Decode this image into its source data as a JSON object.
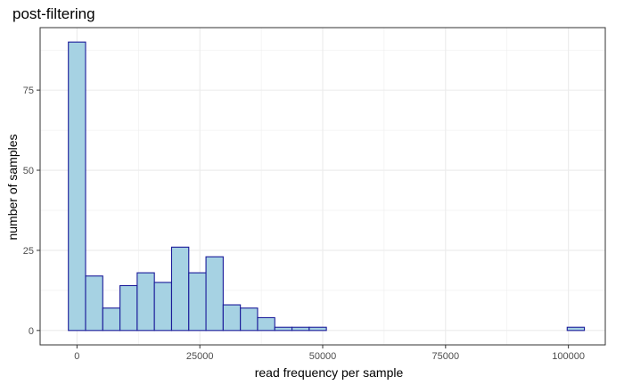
{
  "chart_data": {
    "type": "bar",
    "title": "post-filtering",
    "xlabel": "read frequency per sample",
    "ylabel": "number of samples",
    "xlim": [
      -7500,
      107500
    ],
    "ylim": [
      -4.5,
      94.5
    ],
    "x_ticks": [
      0,
      25000,
      50000,
      75000,
      100000
    ],
    "y_ticks": [
      0,
      25,
      50,
      75
    ],
    "x_minor_ticks": [
      -12500,
      12500,
      37500,
      62500,
      87500
    ],
    "y_minor_ticks": [
      12.5,
      37.5,
      62.5,
      87.5
    ],
    "bin_width": 3500,
    "bin_centers": [
      0,
      3500,
      7000,
      10500,
      14000,
      17500,
      21000,
      24500,
      28000,
      31500,
      35000,
      38500,
      42000,
      45500,
      49000,
      52500,
      56000,
      59500,
      63000,
      66500,
      70000,
      73500,
      77000,
      80500,
      84000,
      87500,
      91000,
      94500,
      98000,
      101500
    ],
    "values": [
      90,
      17,
      7,
      14,
      18,
      15,
      26,
      18,
      23,
      8,
      7,
      4,
      1,
      1,
      1,
      0,
      0,
      0,
      0,
      0,
      0,
      0,
      0,
      0,
      0,
      0,
      0,
      0,
      0,
      1
    ],
    "grid": true,
    "colors": {
      "fill": "#a6d2e3",
      "stroke": "#1a1a99",
      "grid": "#ebebeb",
      "panel_border": "#333333"
    }
  }
}
